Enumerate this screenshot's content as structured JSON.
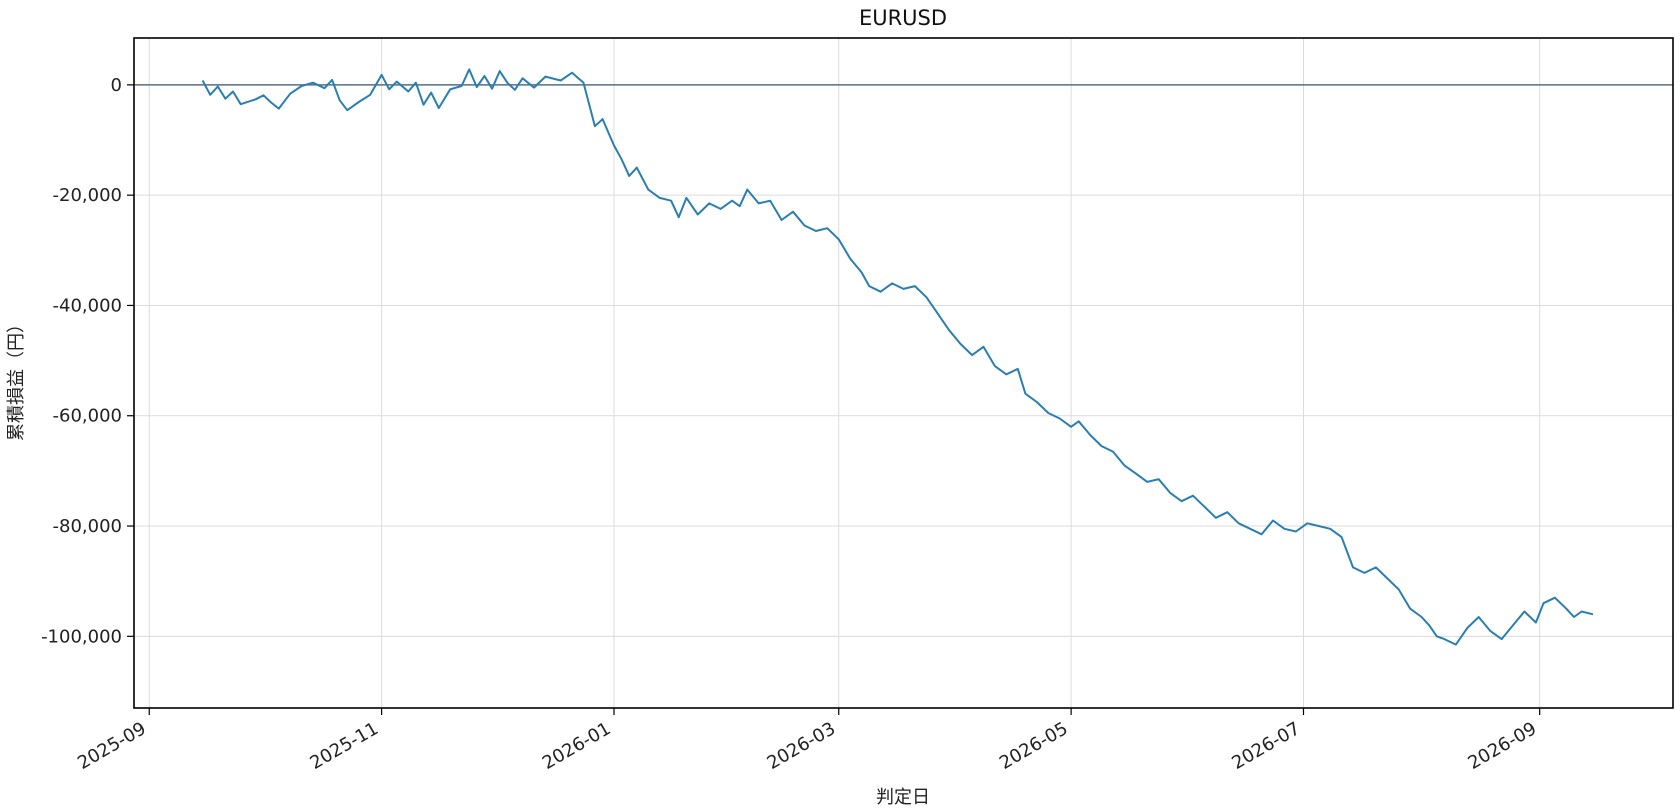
{
  "chart_data": {
    "type": "line",
    "title": "EURUSD",
    "xlabel": "判定日",
    "ylabel": "累積損益（円）",
    "xlim": [
      "2025-08-28",
      "2026-10-06"
    ],
    "ylim": [
      -113000,
      8500
    ],
    "x_ticks": [
      "2025-09",
      "2025-11",
      "2026-01",
      "2026-03",
      "2026-05",
      "2026-07",
      "2026-09"
    ],
    "x_tick_dates": [
      "2025-09-01",
      "2025-11-01",
      "2026-01-01",
      "2026-03-01",
      "2026-05-01",
      "2026-07-01",
      "2026-09-01"
    ],
    "y_ticks": [
      0,
      -20000,
      -40000,
      -60000,
      -80000,
      -100000
    ],
    "y_tick_labels": [
      "0",
      "-20,000",
      "-40,000",
      "-60,000",
      "-80,000",
      "-100,000"
    ],
    "grid": true,
    "reference_line_y": 0,
    "series": [
      {
        "color": "#2a7fb0",
        "points": [
          [
            "2025-09-15",
            800
          ],
          [
            "2025-09-17",
            -1800
          ],
          [
            "2025-09-19",
            -300
          ],
          [
            "2025-09-21",
            -2500
          ],
          [
            "2025-09-23",
            -1200
          ],
          [
            "2025-09-25",
            -3500
          ],
          [
            "2025-09-29",
            -2600
          ],
          [
            "2025-10-01",
            -1900
          ],
          [
            "2025-10-03",
            -3200
          ],
          [
            "2025-10-05",
            -4300
          ],
          [
            "2025-10-08",
            -1600
          ],
          [
            "2025-10-11",
            -200
          ],
          [
            "2025-10-14",
            400
          ],
          [
            "2025-10-17",
            -600
          ],
          [
            "2025-10-19",
            900
          ],
          [
            "2025-10-21",
            -2800
          ],
          [
            "2025-10-23",
            -4600
          ],
          [
            "2025-10-26",
            -3100
          ],
          [
            "2025-10-29",
            -1800
          ],
          [
            "2025-11-01",
            1800
          ],
          [
            "2025-11-03",
            -800
          ],
          [
            "2025-11-05",
            600
          ],
          [
            "2025-11-08",
            -1200
          ],
          [
            "2025-11-10",
            400
          ],
          [
            "2025-11-12",
            -3600
          ],
          [
            "2025-11-14",
            -1400
          ],
          [
            "2025-11-16",
            -4200
          ],
          [
            "2025-11-19",
            -800
          ],
          [
            "2025-11-22",
            -200
          ],
          [
            "2025-11-24",
            2800
          ],
          [
            "2025-11-26",
            -400
          ],
          [
            "2025-11-28",
            1600
          ],
          [
            "2025-11-30",
            -700
          ],
          [
            "2025-12-02",
            2500
          ],
          [
            "2025-12-04",
            400
          ],
          [
            "2025-12-06",
            -900
          ],
          [
            "2025-12-08",
            1200
          ],
          [
            "2025-12-11",
            -500
          ],
          [
            "2025-12-14",
            1500
          ],
          [
            "2025-12-18",
            800
          ],
          [
            "2025-12-21",
            2200
          ],
          [
            "2025-12-24",
            400
          ],
          [
            "2025-12-27",
            -7500
          ],
          [
            "2025-12-29",
            -6200
          ],
          [
            "2026-01-01",
            -11000
          ],
          [
            "2026-01-03",
            -13500
          ],
          [
            "2026-01-05",
            -16500
          ],
          [
            "2026-01-07",
            -15000
          ],
          [
            "2026-01-10",
            -19000
          ],
          [
            "2026-01-13",
            -20500
          ],
          [
            "2026-01-16",
            -21000
          ],
          [
            "2026-01-18",
            -24000
          ],
          [
            "2026-01-20",
            -20500
          ],
          [
            "2026-01-23",
            -23500
          ],
          [
            "2026-01-26",
            -21500
          ],
          [
            "2026-01-29",
            -22500
          ],
          [
            "2026-02-01",
            -21000
          ],
          [
            "2026-02-03",
            -22000
          ],
          [
            "2026-02-05",
            -19000
          ],
          [
            "2026-02-08",
            -21500
          ],
          [
            "2026-02-11",
            -21000
          ],
          [
            "2026-02-14",
            -24500
          ],
          [
            "2026-02-17",
            -23000
          ],
          [
            "2026-02-20",
            -25500
          ],
          [
            "2026-02-23",
            -26500
          ],
          [
            "2026-02-26",
            -26000
          ],
          [
            "2026-03-01",
            -28000
          ],
          [
            "2026-03-04",
            -31500
          ],
          [
            "2026-03-07",
            -34000
          ],
          [
            "2026-03-09",
            -36500
          ],
          [
            "2026-03-12",
            -37500
          ],
          [
            "2026-03-15",
            -36000
          ],
          [
            "2026-03-18",
            -37000
          ],
          [
            "2026-03-21",
            -36500
          ],
          [
            "2026-03-24",
            -38500
          ],
          [
            "2026-03-27",
            -41500
          ],
          [
            "2026-03-30",
            -44500
          ],
          [
            "2026-04-02",
            -47000
          ],
          [
            "2026-04-05",
            -49000
          ],
          [
            "2026-04-08",
            -47500
          ],
          [
            "2026-04-11",
            -51000
          ],
          [
            "2026-04-14",
            -52500
          ],
          [
            "2026-04-17",
            -51500
          ],
          [
            "2026-04-19",
            -56000
          ],
          [
            "2026-04-22",
            -57500
          ],
          [
            "2026-04-25",
            -59500
          ],
          [
            "2026-04-28",
            -60500
          ],
          [
            "2026-05-01",
            -62000
          ],
          [
            "2026-05-03",
            -61000
          ],
          [
            "2026-05-06",
            -63500
          ],
          [
            "2026-05-09",
            -65500
          ],
          [
            "2026-05-12",
            -66500
          ],
          [
            "2026-05-15",
            -69000
          ],
          [
            "2026-05-18",
            -70500
          ],
          [
            "2026-05-21",
            -72000
          ],
          [
            "2026-05-24",
            -71500
          ],
          [
            "2026-05-27",
            -74000
          ],
          [
            "2026-05-30",
            -75500
          ],
          [
            "2026-06-02",
            -74500
          ],
          [
            "2026-06-05",
            -76500
          ],
          [
            "2026-06-08",
            -78500
          ],
          [
            "2026-06-11",
            -77500
          ],
          [
            "2026-06-14",
            -79500
          ],
          [
            "2026-06-17",
            -80500
          ],
          [
            "2026-06-20",
            -81500
          ],
          [
            "2026-06-23",
            -79000
          ],
          [
            "2026-06-26",
            -80500
          ],
          [
            "2026-06-29",
            -81000
          ],
          [
            "2026-07-02",
            -79500
          ],
          [
            "2026-07-05",
            -80000
          ],
          [
            "2026-07-08",
            -80500
          ],
          [
            "2026-07-11",
            -82000
          ],
          [
            "2026-07-14",
            -87500
          ],
          [
            "2026-07-17",
            -88500
          ],
          [
            "2026-07-20",
            -87500
          ],
          [
            "2026-07-23",
            -89500
          ],
          [
            "2026-07-26",
            -91500
          ],
          [
            "2026-07-29",
            -95000
          ],
          [
            "2026-08-01",
            -96500
          ],
          [
            "2026-08-03",
            -98000
          ],
          [
            "2026-08-05",
            -100000
          ],
          [
            "2026-08-07",
            -100500
          ],
          [
            "2026-08-10",
            -101500
          ],
          [
            "2026-08-13",
            -98500
          ],
          [
            "2026-08-16",
            -96500
          ],
          [
            "2026-08-19",
            -99000
          ],
          [
            "2026-08-22",
            -100500
          ],
          [
            "2026-08-25",
            -98000
          ],
          [
            "2026-08-28",
            -95500
          ],
          [
            "2026-08-31",
            -97500
          ],
          [
            "2026-09-02",
            -94000
          ],
          [
            "2026-09-05",
            -93000
          ],
          [
            "2026-09-08",
            -95000
          ],
          [
            "2026-09-10",
            -96500
          ],
          [
            "2026-09-12",
            -95500
          ],
          [
            "2026-09-15",
            -96000
          ]
        ]
      }
    ]
  }
}
